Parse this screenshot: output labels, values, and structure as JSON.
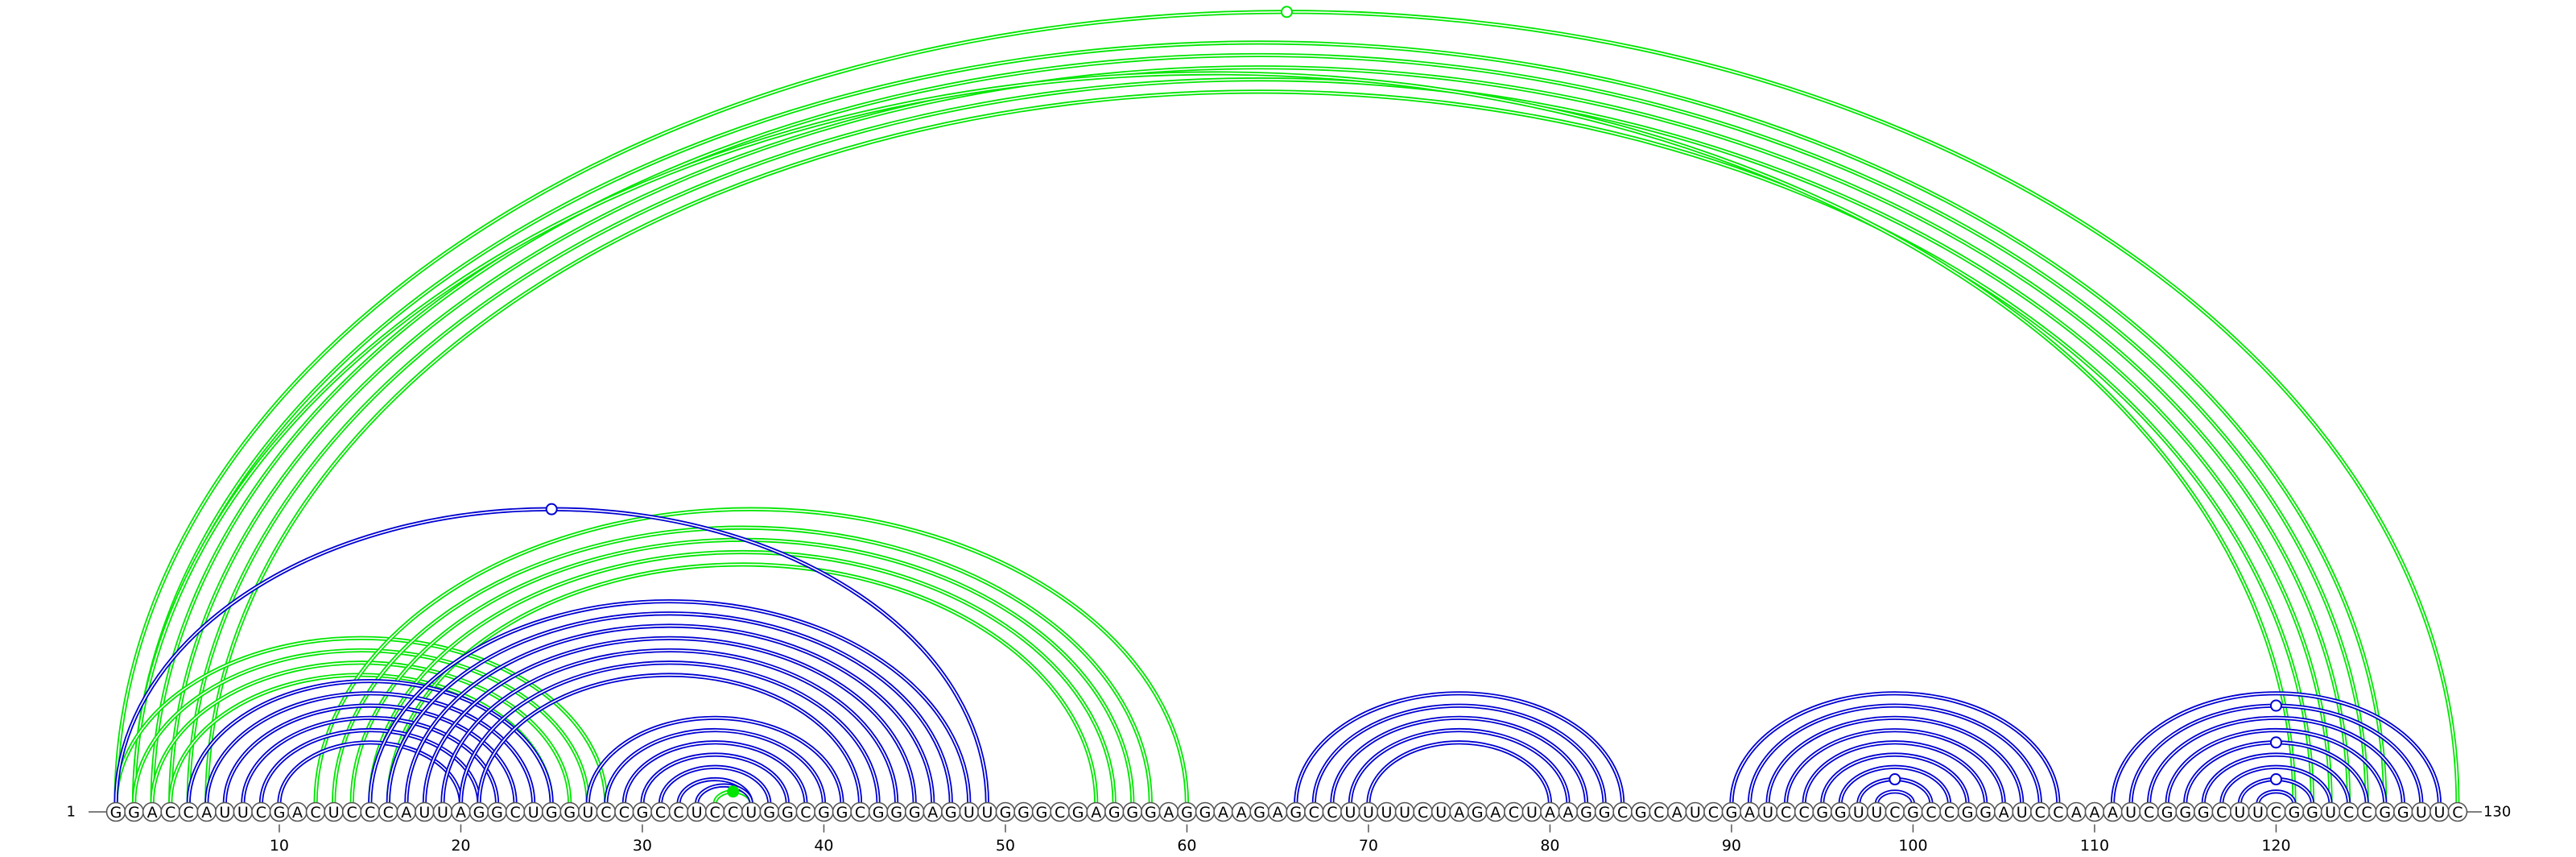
{
  "sequence": "GGACCAUUCGACUCCCAUUAGGCUGGUCCGCCUCCUGGCGGCGGGAGUUGGGCGAGGGAGGAAGAGCCUUUUCUAGACUAAGGCGCAUCGAUCCGGUUCGCCGGAUCCAAAUCGGGCUUCGGUCCGGUUC",
  "start_label": "1",
  "end_label": "130",
  "ticks": [
    10,
    20,
    30,
    40,
    50,
    60,
    70,
    80,
    90,
    100,
    110,
    120
  ],
  "colors": {
    "upper_arcs": "#00e600",
    "lower_arcs": "#0000d2",
    "backbone": "#555555"
  },
  "upper_arcs": [
    [
      1,
      130
    ],
    [
      2,
      126
    ],
    [
      3,
      125
    ],
    [
      4,
      124
    ],
    [
      5,
      123
    ],
    [
      6,
      122
    ],
    [
      2,
      121
    ],
    [
      1,
      28
    ],
    [
      2,
      27
    ],
    [
      3,
      26
    ],
    [
      4,
      25
    ],
    [
      12,
      60
    ],
    [
      13,
      58
    ],
    [
      14,
      57
    ],
    [
      15,
      56
    ],
    [
      16,
      55
    ],
    [
      34,
      36
    ]
  ],
  "lower_arcs": [
    [
      5,
      25
    ],
    [
      6,
      24
    ],
    [
      7,
      23
    ],
    [
      8,
      22
    ],
    [
      9,
      21
    ],
    [
      10,
      20
    ],
    [
      1,
      49
    ],
    [
      15,
      48
    ],
    [
      16,
      47
    ],
    [
      17,
      46
    ],
    [
      18,
      45
    ],
    [
      19,
      44
    ],
    [
      20,
      43
    ],
    [
      21,
      42
    ],
    [
      27,
      41
    ],
    [
      28,
      40
    ],
    [
      29,
      39
    ],
    [
      30,
      38
    ],
    [
      31,
      37
    ],
    [
      32,
      36
    ],
    [
      33,
      36
    ],
    [
      66,
      84
    ],
    [
      67,
      83
    ],
    [
      68,
      82
    ],
    [
      69,
      81
    ],
    [
      70,
      80
    ],
    [
      90,
      108
    ],
    [
      91,
      107
    ],
    [
      92,
      106
    ],
    [
      93,
      105
    ],
    [
      94,
      104
    ],
    [
      95,
      103
    ],
    [
      96,
      102
    ],
    [
      97,
      101
    ],
    [
      98,
      100
    ],
    [
      111,
      129
    ],
    [
      112,
      128
    ],
    [
      113,
      127
    ],
    [
      114,
      126
    ],
    [
      115,
      125
    ],
    [
      116,
      124
    ],
    [
      117,
      123
    ],
    [
      118,
      122
    ],
    [
      119,
      121
    ]
  ],
  "markers": {
    "open": [
      {
        "pair": [
          1,
          130
        ],
        "row": "upper"
      },
      {
        "pair": [
          1,
          49
        ],
        "row": "lower"
      },
      {
        "pair": [
          97,
          101
        ],
        "row": "lower"
      },
      {
        "pair": [
          112,
          128
        ],
        "row": "lower"
      },
      {
        "pair": [
          115,
          125
        ],
        "row": "lower"
      },
      {
        "pair": [
          118,
          122
        ],
        "row": "lower"
      }
    ],
    "filled": [
      {
        "pair": [
          34,
          36
        ],
        "row": "upper"
      }
    ]
  }
}
